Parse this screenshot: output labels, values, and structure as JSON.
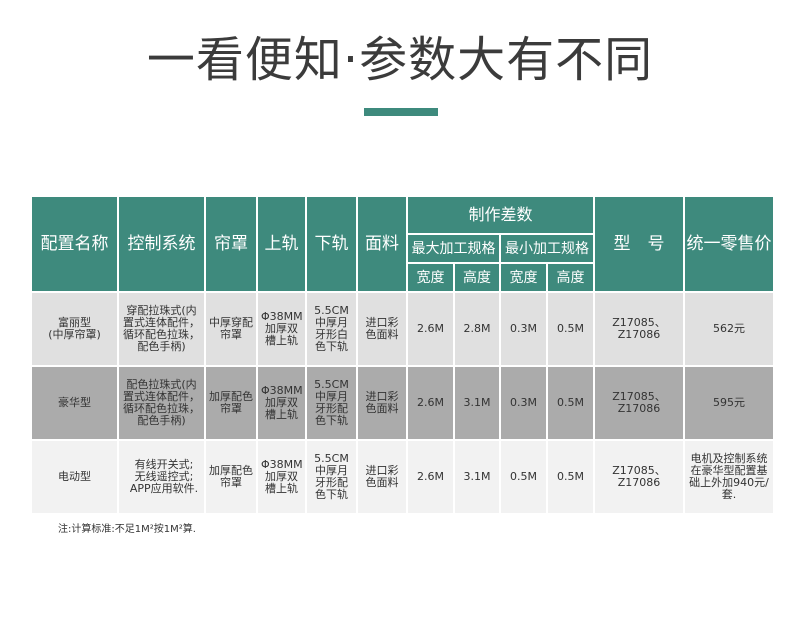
{
  "title": "一看便知·参数大有不同",
  "colors": {
    "header_bg": "#3e8a7d",
    "row_light": "#e0e0e0",
    "row_dark": "#ababab",
    "row_white": "#f2f2f2"
  },
  "headers": {
    "config_name": "配置名称",
    "control_system": "控制系统",
    "curtain_cover": "帘罩",
    "top_rail": "上轨",
    "bottom_rail": "下轨",
    "fabric": "面料",
    "size_diff": "制作差数",
    "max_spec": "最大加工规格",
    "min_spec": "最小加工规格",
    "model": "型　号",
    "retail_price": "统一零售价",
    "width": "宽度",
    "height": "高度",
    "width2": "宽度",
    "height2": "高度"
  },
  "rows": [
    {
      "name": "富丽型\n(中厚帘罩)",
      "control": "穿配拉珠式(内置式连体配件，循环配色拉珠，配色手柄)",
      "cover": "中厚穿配帘罩",
      "top_rail": "Φ38MM加厚双槽上轨",
      "bottom_rail": "5.5CM中厚月牙形白色下轨",
      "fabric": "进口彩色面料",
      "max_w": "2.6M",
      "max_h": "2.8M",
      "min_w": "0.3M",
      "min_h": "0.5M",
      "model": "Z17085、Z17086",
      "price": "562元"
    },
    {
      "name": "豪华型",
      "control": "配色拉珠式(内置式连体配件，循环配色拉珠，配色手柄)",
      "cover": "加厚配色帘罩",
      "top_rail": "Φ38MM加厚双槽上轨",
      "bottom_rail": "5.5CM中厚月牙形配色下轨",
      "fabric": "进口彩色面料",
      "max_w": "2.6M",
      "max_h": "3.1M",
      "min_w": "0.3M",
      "min_h": "0.5M",
      "model": "Z17085、Z17086",
      "price": "595元"
    },
    {
      "name": "电动型",
      "control": "有线开关式;\n无线遥控式;\nAPP应用软件.",
      "cover": "加厚配色帘罩",
      "top_rail": "Φ38MM加厚双槽上轨",
      "bottom_rail": "5.5CM中厚月牙形配色下轨",
      "fabric": "进口彩色面料",
      "max_w": "2.6M",
      "max_h": "3.1M",
      "min_w": "0.5M",
      "min_h": "0.5M",
      "model": "Z17085、Z17086",
      "price": "电机及控制系统在豪华型配置基础上外加940元/套."
    }
  ],
  "note": "注:计算标准:不足1M²按1M²算."
}
